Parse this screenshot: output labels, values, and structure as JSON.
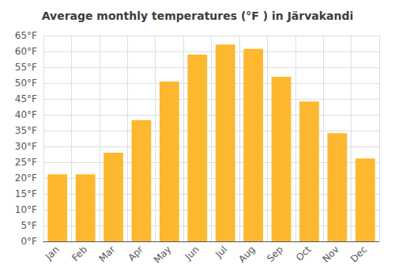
{
  "chart_data": {
    "type": "bar",
    "title": "Average monthly temperatures (°F ) in Järvakandi",
    "categories": [
      "Jan",
      "Feb",
      "Mar",
      "Apr",
      "May",
      "Jun",
      "Jul",
      "Aug",
      "Sep",
      "Oct",
      "Nov",
      "Dec"
    ],
    "values": [
      21.2,
      21.2,
      28.0,
      38.3,
      50.5,
      59.0,
      62.2,
      60.8,
      52.0,
      44.2,
      34.2,
      26.2
    ],
    "color": "#FDB830",
    "ylim": [
      0,
      65
    ],
    "yticks": [
      {
        "value": 0,
        "label": "0°F"
      },
      {
        "value": 5,
        "label": "5°F"
      },
      {
        "value": 10,
        "label": "10°F"
      },
      {
        "value": 15,
        "label": "15°F"
      },
      {
        "value": 20,
        "label": "20°F"
      },
      {
        "value": 25,
        "label": "25°F"
      },
      {
        "value": 30,
        "label": "30°F"
      },
      {
        "value": 35,
        "label": "35°F"
      },
      {
        "value": 40,
        "label": "40°F"
      },
      {
        "value": 45,
        "label": "45°F"
      },
      {
        "value": 50,
        "label": "50°F"
      },
      {
        "value": 55,
        "label": "55°F"
      },
      {
        "value": 60,
        "label": "60°F"
      },
      {
        "value": 65,
        "label": "65°F"
      }
    ],
    "grid": true
  }
}
